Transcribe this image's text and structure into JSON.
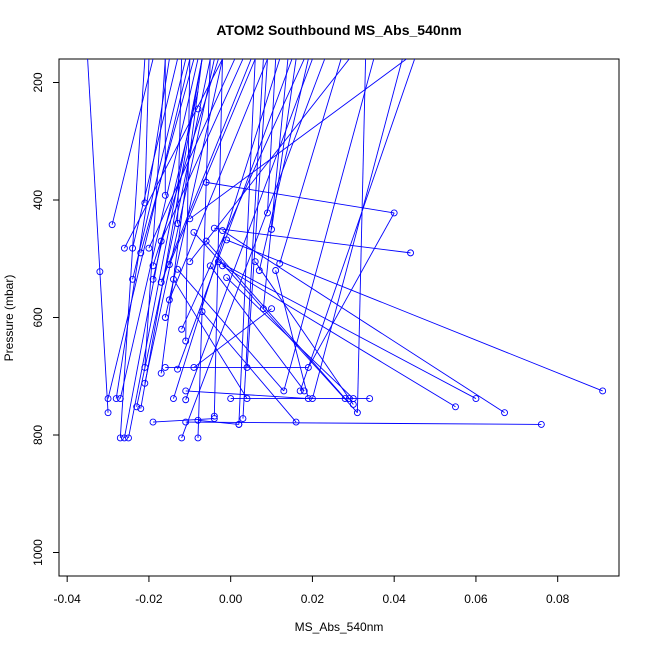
{
  "chart_data": {
    "type": "line",
    "title": "ATOM2 Southbound MS_Abs_540nm",
    "xlabel": "MS_Abs_540nm",
    "ylabel": "Pressure (mbar)",
    "xlim": [
      -0.042,
      0.095
    ],
    "ylim": [
      1040,
      160
    ],
    "y_reversed": true,
    "x_ticks": [
      -0.04,
      -0.02,
      0.0,
      0.02,
      0.04,
      0.06,
      0.08
    ],
    "x_tick_labels": [
      "-0.04",
      "-0.02",
      "0.00",
      "0.02",
      "0.04",
      "0.06",
      "0.08"
    ],
    "y_ticks": [
      200,
      400,
      600,
      800,
      1000
    ],
    "y_tick_labels": [
      "200",
      "400",
      "600",
      "800",
      "1000"
    ],
    "grid": false,
    "series_color": "#0000ff",
    "segments": [
      [
        [
          -0.035,
          160
        ],
        [
          -0.032,
          522
        ]
      ],
      [
        [
          -0.032,
          522
        ],
        [
          -0.03,
          762
        ]
      ],
      [
        [
          -0.029,
          442
        ],
        [
          -0.019,
          160
        ]
      ],
      [
        [
          -0.028,
          738
        ],
        [
          -0.015,
          160
        ]
      ],
      [
        [
          -0.03,
          738
        ],
        [
          -0.01,
          160
        ]
      ],
      [
        [
          -0.027,
          738
        ],
        [
          -0.008,
          160
        ]
      ],
      [
        [
          -0.026,
          805
        ],
        [
          -0.017,
          470
        ]
      ],
      [
        [
          -0.025,
          805
        ],
        [
          -0.007,
          160
        ]
      ],
      [
        [
          -0.024,
          482
        ],
        [
          -0.013,
          160
        ]
      ],
      [
        [
          -0.024,
          535
        ],
        [
          -0.011,
          160
        ]
      ],
      [
        [
          -0.023,
          752
        ],
        [
          -0.005,
          160
        ]
      ],
      [
        [
          -0.022,
          490
        ],
        [
          -0.009,
          160
        ]
      ],
      [
        [
          -0.021,
          405
        ],
        [
          -0.02,
          160
        ]
      ],
      [
        [
          -0.021,
          685
        ],
        [
          -0.016,
          160
        ]
      ],
      [
        [
          -0.021,
          712
        ],
        [
          -0.004,
          160
        ]
      ],
      [
        [
          -0.02,
          482
        ],
        [
          0.001,
          160
        ]
      ],
      [
        [
          -0.019,
          512
        ],
        [
          -0.003,
          160
        ]
      ],
      [
        [
          -0.019,
          535
        ],
        [
          -0.008,
          215
        ]
      ],
      [
        [
          -0.019,
          778
        ],
        [
          -0.004,
          772
        ]
      ],
      [
        [
          -0.017,
          695
        ],
        [
          -0.007,
          160
        ]
      ],
      [
        [
          -0.017,
          470
        ],
        [
          0.003,
          160
        ]
      ],
      [
        [
          -0.017,
          540
        ],
        [
          0.005,
          160
        ]
      ],
      [
        [
          -0.016,
          392
        ],
        [
          -0.016,
          160
        ]
      ],
      [
        [
          -0.016,
          600
        ],
        [
          -0.002,
          160
        ]
      ],
      [
        [
          -0.016,
          685
        ],
        [
          0.019,
          685
        ]
      ],
      [
        [
          -0.015,
          510
        ],
        [
          0.006,
          160
        ]
      ],
      [
        [
          -0.015,
          570
        ],
        [
          0.009,
          160
        ]
      ],
      [
        [
          -0.014,
          738
        ],
        [
          0.012,
          160
        ]
      ],
      [
        [
          -0.014,
          535
        ],
        [
          0.004,
          738
        ]
      ],
      [
        [
          -0.013,
          440
        ],
        [
          -0.012,
          160
        ]
      ],
      [
        [
          -0.013,
          518
        ],
        [
          0.013,
          725
        ]
      ],
      [
        [
          -0.013,
          688
        ],
        [
          0.015,
          160
        ]
      ],
      [
        [
          -0.012,
          620
        ],
        [
          0.018,
          160
        ]
      ],
      [
        [
          -0.012,
          805
        ],
        [
          0.023,
          160
        ]
      ],
      [
        [
          -0.011,
          640
        ],
        [
          -0.01,
          160
        ]
      ],
      [
        [
          -0.011,
          778
        ],
        [
          0.076,
          782
        ]
      ],
      [
        [
          -0.011,
          725
        ],
        [
          0.019,
          738
        ]
      ],
      [
        [
          -0.011,
          740
        ],
        [
          0.02,
          160
        ]
      ],
      [
        [
          -0.01,
          505
        ],
        [
          0.029,
          160
        ]
      ],
      [
        [
          -0.01,
          432
        ],
        [
          0.043,
          160
        ]
      ],
      [
        [
          -0.009,
          455
        ],
        [
          0.031,
          762
        ]
      ],
      [
        [
          -0.009,
          685
        ],
        [
          0.01,
          585
        ]
      ],
      [
        [
          -0.008,
          805
        ],
        [
          -0.005,
          160
        ]
      ],
      [
        [
          -0.008,
          775
        ],
        [
          0.002,
          782
        ]
      ],
      [
        [
          -0.007,
          590
        ],
        [
          0.016,
          778
        ]
      ],
      [
        [
          -0.006,
          470
        ],
        [
          0.028,
          738
        ]
      ],
      [
        [
          -0.006,
          370
        ],
        [
          0.04,
          422
        ]
      ],
      [
        [
          -0.005,
          512
        ],
        [
          0.018,
          725
        ]
      ],
      [
        [
          -0.004,
          448
        ],
        [
          0.044,
          490
        ]
      ],
      [
        [
          -0.004,
          768
        ],
        [
          -0.002,
          160
        ]
      ],
      [
        [
          -0.003,
          505
        ],
        [
          0.06,
          738
        ]
      ],
      [
        [
          -0.002,
          452
        ],
        [
          0.067,
          762
        ]
      ],
      [
        [
          -0.002,
          512
        ],
        [
          0.055,
          752
        ]
      ],
      [
        [
          -0.001,
          468
        ],
        [
          0.091,
          725
        ]
      ],
      [
        [
          -0.001,
          532
        ],
        [
          0.03,
          738
        ]
      ],
      [
        [
          0.0,
          738
        ],
        [
          0.034,
          738
        ]
      ],
      [
        [
          0.002,
          782
        ],
        [
          0.006,
          160
        ]
      ],
      [
        [
          0.003,
          772
        ],
        [
          0.008,
          160
        ]
      ],
      [
        [
          0.004,
          685
        ],
        [
          0.009,
          160
        ]
      ],
      [
        [
          0.006,
          505
        ],
        [
          0.03,
          748
        ]
      ],
      [
        [
          0.007,
          520
        ],
        [
          0.019,
          160
        ]
      ],
      [
        [
          0.008,
          585
        ],
        [
          0.014,
          160
        ]
      ],
      [
        [
          0.009,
          422
        ],
        [
          0.011,
          160
        ]
      ],
      [
        [
          0.01,
          450
        ],
        [
          0.016,
          160
        ]
      ],
      [
        [
          0.011,
          520
        ],
        [
          0.019,
          738
        ]
      ],
      [
        [
          0.012,
          508
        ],
        [
          0.027,
          160
        ]
      ],
      [
        [
          0.013,
          725
        ],
        [
          0.035,
          160
        ]
      ],
      [
        [
          0.017,
          725
        ],
        [
          0.045,
          160
        ]
      ],
      [
        [
          0.019,
          685
        ],
        [
          0.04,
          422
        ]
      ],
      [
        [
          0.02,
          738
        ],
        [
          0.042,
          160
        ]
      ],
      [
        [
          0.031,
          762
        ],
        [
          0.033,
          160
        ]
      ],
      [
        [
          -0.027,
          805
        ],
        [
          -0.021,
          160
        ]
      ],
      [
        [
          -0.026,
          482
        ],
        [
          -0.002,
          160
        ]
      ],
      [
        [
          -0.022,
          755
        ],
        [
          -0.007,
          160
        ]
      ]
    ],
    "points": [
      [
        -0.032,
        522
      ],
      [
        -0.03,
        762
      ],
      [
        -0.03,
        738
      ],
      [
        -0.029,
        442
      ],
      [
        -0.028,
        738
      ],
      [
        -0.027,
        738
      ],
      [
        -0.027,
        805
      ],
      [
        -0.026,
        805
      ],
      [
        -0.025,
        805
      ],
      [
        -0.026,
        482
      ],
      [
        -0.024,
        482
      ],
      [
        -0.024,
        535
      ],
      [
        -0.023,
        752
      ],
      [
        -0.022,
        490
      ],
      [
        -0.021,
        405
      ],
      [
        -0.021,
        685
      ],
      [
        -0.021,
        712
      ],
      [
        -0.02,
        482
      ],
      [
        -0.019,
        512
      ],
      [
        -0.019,
        535
      ],
      [
        -0.019,
        778
      ],
      [
        -0.017,
        695
      ],
      [
        -0.017,
        470
      ],
      [
        -0.017,
        540
      ],
      [
        -0.016,
        392
      ],
      [
        -0.016,
        600
      ],
      [
        -0.016,
        685
      ],
      [
        -0.015,
        510
      ],
      [
        -0.015,
        570
      ],
      [
        -0.014,
        738
      ],
      [
        -0.014,
        535
      ],
      [
        -0.013,
        440
      ],
      [
        -0.013,
        518
      ],
      [
        -0.013,
        688
      ],
      [
        -0.012,
        620
      ],
      [
        -0.012,
        805
      ],
      [
        -0.011,
        640
      ],
      [
        -0.011,
        778
      ],
      [
        -0.011,
        725
      ],
      [
        -0.011,
        740
      ],
      [
        -0.01,
        505
      ],
      [
        -0.01,
        432
      ],
      [
        -0.009,
        455
      ],
      [
        -0.009,
        685
      ],
      [
        -0.008,
        805
      ],
      [
        -0.008,
        775
      ],
      [
        -0.008,
        245
      ],
      [
        -0.007,
        590
      ],
      [
        -0.006,
        470
      ],
      [
        -0.006,
        370
      ],
      [
        -0.005,
        512
      ],
      [
        -0.004,
        448
      ],
      [
        -0.004,
        768
      ],
      [
        -0.003,
        505
      ],
      [
        -0.002,
        452
      ],
      [
        -0.002,
        512
      ],
      [
        -0.001,
        468
      ],
      [
        -0.001,
        532
      ],
      [
        0.0,
        738
      ],
      [
        0.002,
        782
      ],
      [
        0.003,
        772
      ],
      [
        0.004,
        685
      ],
      [
        0.004,
        738
      ],
      [
        0.006,
        505
      ],
      [
        0.007,
        520
      ],
      [
        0.008,
        585
      ],
      [
        0.009,
        422
      ],
      [
        0.01,
        450
      ],
      [
        0.01,
        585
      ],
      [
        0.011,
        520
      ],
      [
        0.012,
        508
      ],
      [
        0.013,
        725
      ],
      [
        0.016,
        778
      ],
      [
        0.017,
        725
      ],
      [
        0.018,
        725
      ],
      [
        0.019,
        685
      ],
      [
        0.019,
        738
      ],
      [
        0.02,
        738
      ],
      [
        0.028,
        738
      ],
      [
        0.029,
        738
      ],
      [
        0.03,
        738
      ],
      [
        0.03,
        748
      ],
      [
        0.031,
        762
      ],
      [
        0.034,
        738
      ],
      [
        0.04,
        422
      ],
      [
        0.044,
        490
      ],
      [
        0.055,
        752
      ],
      [
        0.06,
        738
      ],
      [
        0.067,
        762
      ],
      [
        0.076,
        782
      ],
      [
        0.091,
        725
      ],
      [
        -0.022,
        755
      ],
      [
        -0.004,
        772
      ],
      [
        0.002,
        782
      ]
    ]
  }
}
